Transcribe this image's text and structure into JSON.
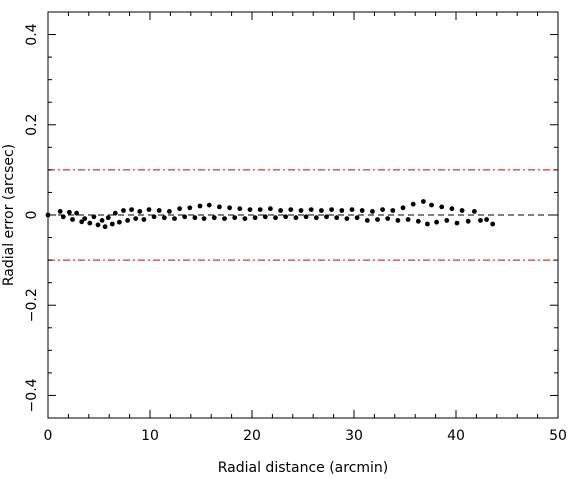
{
  "chart_data": {
    "type": "scatter",
    "title": "",
    "xlabel": "Radial distance (arcmin)",
    "ylabel": "Radial error (arcsec)",
    "xlim": [
      0,
      50
    ],
    "ylim": [
      -0.45,
      0.45
    ],
    "x_ticks": [
      0,
      10,
      20,
      30,
      40,
      50
    ],
    "y_ticks": [
      -0.4,
      -0.2,
      0,
      0.2,
      0.4
    ],
    "x_tick_labels": [
      "0",
      "10",
      "20",
      "30",
      "40",
      "50"
    ],
    "y_tick_labels": [
      "−0.4",
      "−0.2",
      "0",
      "0.2",
      "0.4"
    ],
    "grid": false,
    "reference_lines": [
      {
        "y": 0,
        "style": "dashed",
        "color": "#000000"
      },
      {
        "y": 0.1,
        "style": "dash-dot",
        "color": "#cc0000"
      },
      {
        "y": -0.1,
        "style": "dash-dot",
        "color": "#cc0000"
      }
    ],
    "series": [
      {
        "color": "#000000",
        "points": [
          [
            0.0,
            0.0
          ],
          [
            1.2,
            0.008
          ],
          [
            1.5,
            -0.004
          ],
          [
            2.1,
            0.006
          ],
          [
            2.4,
            -0.01
          ],
          [
            2.8,
            0.004
          ],
          [
            3.3,
            -0.015
          ],
          [
            3.6,
            -0.008
          ],
          [
            4.1,
            -0.018
          ],
          [
            4.5,
            -0.004
          ],
          [
            4.9,
            -0.022
          ],
          [
            5.3,
            -0.012
          ],
          [
            5.6,
            -0.026
          ],
          [
            5.9,
            -0.006
          ],
          [
            6.3,
            -0.02
          ],
          [
            6.6,
            0.004
          ],
          [
            7.0,
            -0.016
          ],
          [
            7.4,
            0.01
          ],
          [
            7.8,
            -0.012
          ],
          [
            8.2,
            0.012
          ],
          [
            8.6,
            -0.008
          ],
          [
            9.0,
            0.008
          ],
          [
            9.4,
            -0.01
          ],
          [
            9.9,
            0.012
          ],
          [
            10.4,
            -0.004
          ],
          [
            10.9,
            0.01
          ],
          [
            11.4,
            -0.006
          ],
          [
            11.9,
            0.008
          ],
          [
            12.4,
            -0.008
          ],
          [
            12.9,
            0.014
          ],
          [
            13.4,
            -0.004
          ],
          [
            13.9,
            0.016
          ],
          [
            14.4,
            -0.006
          ],
          [
            14.9,
            0.02
          ],
          [
            15.3,
            -0.008
          ],
          [
            15.8,
            0.022
          ],
          [
            16.3,
            -0.006
          ],
          [
            16.8,
            0.018
          ],
          [
            17.3,
            -0.008
          ],
          [
            17.8,
            0.016
          ],
          [
            18.3,
            -0.006
          ],
          [
            18.8,
            0.014
          ],
          [
            19.3,
            -0.008
          ],
          [
            19.8,
            0.012
          ],
          [
            20.3,
            -0.006
          ],
          [
            20.8,
            0.012
          ],
          [
            21.3,
            -0.004
          ],
          [
            21.8,
            0.014
          ],
          [
            22.3,
            -0.006
          ],
          [
            22.8,
            0.01
          ],
          [
            23.3,
            -0.004
          ],
          [
            23.8,
            0.012
          ],
          [
            24.3,
            -0.006
          ],
          [
            24.8,
            0.01
          ],
          [
            25.3,
            -0.004
          ],
          [
            25.8,
            0.012
          ],
          [
            26.3,
            -0.006
          ],
          [
            26.8,
            0.01
          ],
          [
            27.3,
            -0.004
          ],
          [
            27.8,
            0.012
          ],
          [
            28.3,
            -0.006
          ],
          [
            28.8,
            0.01
          ],
          [
            29.3,
            -0.008
          ],
          [
            29.8,
            0.012
          ],
          [
            30.3,
            -0.006
          ],
          [
            30.8,
            0.01
          ],
          [
            31.3,
            -0.012
          ],
          [
            31.8,
            0.008
          ],
          [
            32.3,
            -0.01
          ],
          [
            32.8,
            0.012
          ],
          [
            33.3,
            -0.008
          ],
          [
            33.8,
            0.01
          ],
          [
            34.3,
            -0.012
          ],
          [
            34.8,
            0.016
          ],
          [
            35.3,
            -0.01
          ],
          [
            35.8,
            0.024
          ],
          [
            36.3,
            -0.014
          ],
          [
            36.8,
            0.03
          ],
          [
            37.2,
            -0.02
          ],
          [
            37.6,
            0.022
          ],
          [
            38.1,
            -0.016
          ],
          [
            38.6,
            0.018
          ],
          [
            39.1,
            -0.012
          ],
          [
            39.6,
            0.014
          ],
          [
            40.1,
            -0.018
          ],
          [
            40.6,
            0.01
          ],
          [
            41.2,
            -0.014
          ],
          [
            41.8,
            0.008
          ],
          [
            42.4,
            -0.012
          ],
          [
            43.0,
            -0.01
          ],
          [
            43.6,
            -0.02
          ]
        ]
      }
    ]
  }
}
